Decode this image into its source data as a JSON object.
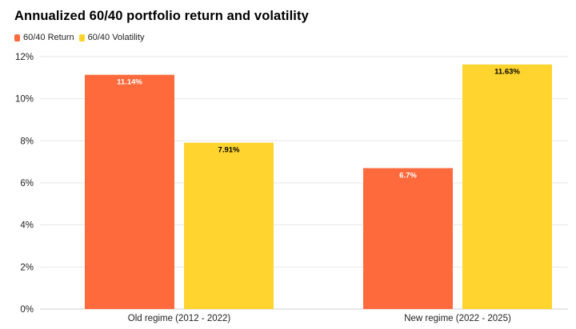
{
  "chart_data": {
    "type": "bar",
    "title": "Annualized 60/40 portfolio return and volatility",
    "categories": [
      "Old regime (2012 - 2022)",
      "New regime (2022 - 2025)"
    ],
    "series": [
      {
        "name": "60/40 Return",
        "values": [
          11.14,
          6.7
        ],
        "labels": [
          "11.14%",
          "6.7%"
        ],
        "color": "#ff6a3d",
        "label_color": "#ffffff"
      },
      {
        "name": "60/40 Volatility",
        "values": [
          7.91,
          11.63
        ],
        "labels": [
          "7.91%",
          "11.63%"
        ],
        "color": "#ffd42e",
        "label_color": "#000000"
      }
    ],
    "y_ticks": [
      0,
      2,
      4,
      6,
      8,
      10,
      12
    ],
    "y_tick_labels": [
      "0%",
      "2%",
      "4%",
      "6%",
      "8%",
      "10%",
      "12%"
    ],
    "ylim": [
      0,
      12
    ],
    "grid": true,
    "legend_position": "top-left"
  }
}
